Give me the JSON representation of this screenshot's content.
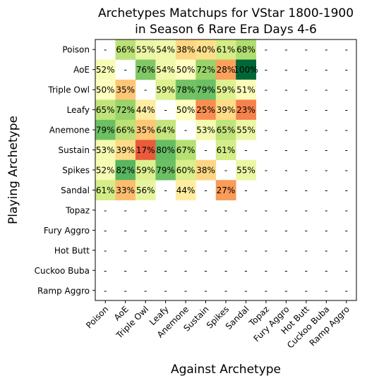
{
  "chart_data": {
    "type": "heatmap",
    "title_line1": "Archetypes Matchups for VStar 1800-1900",
    "title_line2": "in Season 6 Rare Era Days 4-6",
    "xlabel": "Against Archetype",
    "ylabel": "Playing Archetype",
    "rows": [
      "Poison",
      "AoE",
      "Triple Owl",
      "Leafy",
      "Anemone",
      "Sustain",
      "Spikes",
      "Sandal",
      "Topaz",
      "Fury Aggro",
      "Hot Butt",
      "Cuckoo Buba",
      "Ramp Aggro"
    ],
    "cols": [
      "Poison",
      "AoE",
      "Triple Owl",
      "Leafy",
      "Anemone",
      "Sustain",
      "Spikes",
      "Sandal",
      "Topaz",
      "Fury Aggro",
      "Hot Butt",
      "Cuckoo Buba",
      "Ramp Aggro"
    ],
    "values": [
      [
        null,
        66,
        55,
        54,
        38,
        40,
        61,
        68,
        null,
        null,
        null,
        null,
        null
      ],
      [
        52,
        null,
        76,
        54,
        50,
        72,
        28,
        100,
        null,
        null,
        null,
        null,
        null
      ],
      [
        50,
        35,
        null,
        59,
        78,
        79,
        59,
        51,
        null,
        null,
        null,
        null,
        null
      ],
      [
        65,
        72,
        44,
        null,
        50,
        25,
        39,
        23,
        null,
        null,
        null,
        null,
        null
      ],
      [
        79,
        66,
        35,
        64,
        null,
        53,
        65,
        55,
        null,
        null,
        null,
        null,
        null
      ],
      [
        53,
        39,
        17,
        80,
        67,
        null,
        61,
        null,
        null,
        null,
        null,
        null,
        null
      ],
      [
        52,
        82,
        59,
        79,
        60,
        38,
        null,
        55,
        null,
        null,
        null,
        null,
        null
      ],
      [
        61,
        33,
        56,
        null,
        44,
        null,
        27,
        null,
        null,
        null,
        null,
        null,
        null
      ],
      [
        null,
        null,
        null,
        null,
        null,
        null,
        null,
        null,
        null,
        null,
        null,
        null,
        null
      ],
      [
        null,
        null,
        null,
        null,
        null,
        null,
        null,
        null,
        null,
        null,
        null,
        null,
        null
      ],
      [
        null,
        null,
        null,
        null,
        null,
        null,
        null,
        null,
        null,
        null,
        null,
        null,
        null
      ],
      [
        null,
        null,
        null,
        null,
        null,
        null,
        null,
        null,
        null,
        null,
        null,
        null,
        null
      ],
      [
        null,
        null,
        null,
        null,
        null,
        null,
        null,
        null,
        null,
        null,
        null,
        null,
        null
      ]
    ],
    "missing_label": "-",
    "value_suffix": "%",
    "colormap": "RdYlGn",
    "color_range": [
      0,
      100
    ]
  }
}
